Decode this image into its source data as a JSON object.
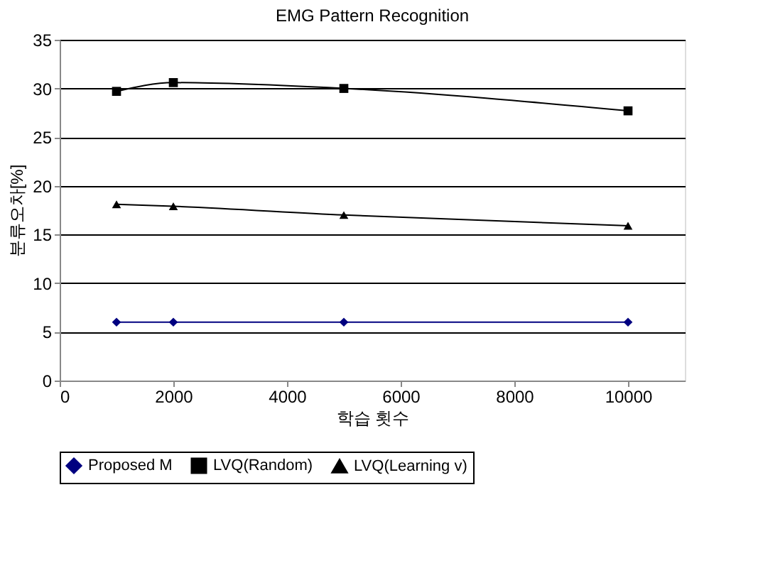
{
  "chart_data": {
    "type": "line",
    "title": "EMG Pattern Recognition",
    "xlabel": "학습 횟수",
    "ylabel": "분류오차[%]",
    "x": [
      1000,
      2000,
      5000,
      10000
    ],
    "series": [
      {
        "name": "Proposed M",
        "color": "#000080",
        "marker": "diamond",
        "values": [
          6,
          6,
          6,
          6
        ]
      },
      {
        "name": "LVQ(Random)",
        "color": "#000000",
        "marker": "square",
        "values": [
          29.7,
          30.6,
          30.0,
          27.7
        ]
      },
      {
        "name": "LVQ(Learning v)",
        "color": "#000000",
        "marker": "triangle",
        "values": [
          18.1,
          17.9,
          17.0,
          15.9
        ]
      }
    ],
    "xlim": [
      0,
      11000
    ],
    "xticks": [
      0,
      2000,
      4000,
      6000,
      8000,
      10000
    ],
    "ylim": [
      0,
      35
    ],
    "yticks": [
      0,
      5,
      10,
      15,
      20,
      25,
      30,
      35
    ],
    "grid": "y",
    "legend": "bottom",
    "line_style": "solid"
  }
}
